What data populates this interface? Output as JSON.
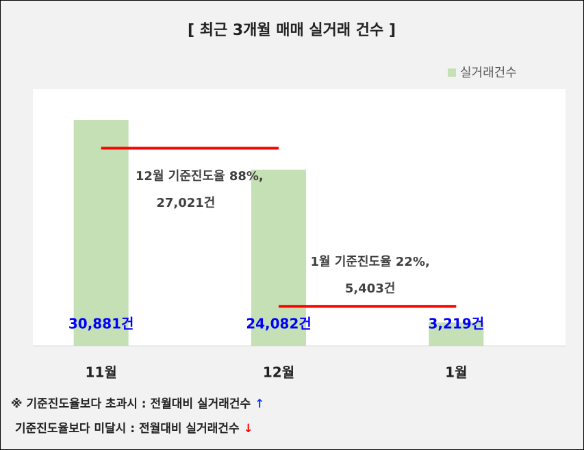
{
  "chart_data": {
    "type": "bar",
    "title": "[ 최근 3개월  매매 실거래 건수 ]",
    "categories": [
      "11월",
      "12월",
      "1월"
    ],
    "series": [
      {
        "name": "실거래건수",
        "color": "#c5e0b4",
        "values": [
          30881,
          24082,
          3219
        ],
        "value_labels": [
          "30,881건",
          "24,082건",
          "3,219건"
        ],
        "label_color": "#0000ff"
      }
    ],
    "ylim": [
      0,
      35100
    ],
    "legend": "top-right",
    "reference_lines": [
      {
        "from": 0,
        "to": 1,
        "value": 27021,
        "text": "12월 기준진도율 88%,",
        "value_label": "27,021건",
        "color": "#ff0000"
      },
      {
        "from": 1,
        "to": 2,
        "value": 5403,
        "text": "1월 기준진도율 22%,",
        "value_label": "5,403건",
        "color": "#ff0000"
      }
    ],
    "notes": [
      {
        "prefix": "※",
        "text": "기준진도율보다 초과시 : 전월대비 실거래건수",
        "arrow": "↑",
        "arrow_color": "#0033ff"
      },
      {
        "text": "기준진도율보다 미달시 : 전월대비 실거래건수",
        "arrow": "↓",
        "arrow_color": "#ff0000"
      }
    ]
  }
}
